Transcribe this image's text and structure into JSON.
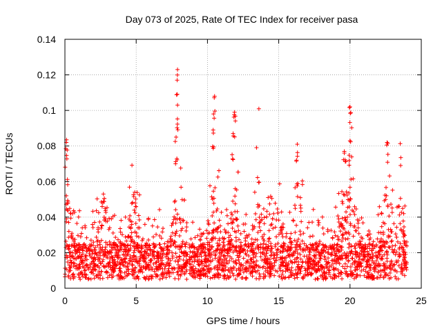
{
  "chart_data": {
    "type": "scatter",
    "title": "Day 073 of 2025, Rate Of TEC Index for receiver pasa",
    "xlabel": "GPS time / hours",
    "ylabel": "ROTI / TECUs",
    "xlim": [
      0,
      25
    ],
    "ylim": [
      0,
      0.14
    ],
    "x_ticks": [
      "0",
      "5",
      "10",
      "15",
      "20",
      "25"
    ],
    "y_ticks": [
      "0",
      "0.02",
      "0.04",
      "0.06",
      "0.08",
      "0.1",
      "0.12",
      "0.14"
    ],
    "grid": true,
    "marker": "+",
    "color": "#ff0000",
    "x_range_of_data": [
      0,
      24
    ],
    "baseline_range": [
      0.005,
      0.025
    ],
    "peaks": [
      {
        "x": 0.1,
        "y": 0.082
      },
      {
        "x": 0.1,
        "y": 0.052
      },
      {
        "x": 2.7,
        "y": 0.053
      },
      {
        "x": 4.9,
        "y": 0.054
      },
      {
        "x": 7.9,
        "y": 0.123
      },
      {
        "x": 7.9,
        "y": 0.103
      },
      {
        "x": 7.8,
        "y": 0.085
      },
      {
        "x": 10.5,
        "y": 0.108
      },
      {
        "x": 10.4,
        "y": 0.089
      },
      {
        "x": 11.9,
        "y": 0.099
      },
      {
        "x": 11.8,
        "y": 0.087
      },
      {
        "x": 16.3,
        "y": 0.081
      },
      {
        "x": 19.6,
        "y": 0.077
      },
      {
        "x": 20.0,
        "y": 0.102
      },
      {
        "x": 20.0,
        "y": 0.083
      },
      {
        "x": 22.6,
        "y": 0.082
      }
    ]
  }
}
